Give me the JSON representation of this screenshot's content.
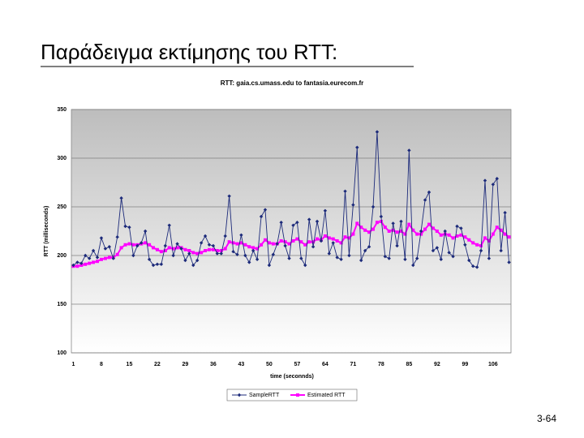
{
  "slide_title": "Παράδειγμα εκτίμησης του RTT:",
  "page_number": "3-64",
  "chart_data": {
    "type": "line",
    "title": "RTT: gaia.cs.umass.edu to fantasia.eurecom.fr",
    "x_label": "time (seconnds)",
    "y_label": "RTT (milliseconds)",
    "categories": [
      1,
      null,
      null,
      null,
      null,
      null,
      null,
      8,
      null,
      null,
      null,
      null,
      null,
      null,
      15,
      null,
      null,
      null,
      null,
      null,
      null,
      22,
      null,
      null,
      null,
      null,
      null,
      null,
      29,
      null,
      null,
      null,
      null,
      null,
      null,
      36,
      null,
      null,
      null,
      null,
      null,
      null,
      43,
      null,
      null,
      null,
      null,
      null,
      null,
      50,
      null,
      null,
      null,
      null,
      null,
      null,
      57,
      null,
      null,
      null,
      null,
      null,
      null,
      64,
      null,
      null,
      null,
      null,
      null,
      null,
      71,
      null,
      null,
      null,
      null,
      null,
      null,
      78,
      null,
      null,
      null,
      null,
      null,
      null,
      85,
      null,
      null,
      null,
      null,
      null,
      null,
      92,
      null,
      null,
      null,
      null,
      null,
      null,
      99,
      null,
      null,
      null,
      null,
      null,
      null,
      106,
      null,
      null,
      null,
      null
    ],
    "ylim": [
      100,
      350
    ],
    "yticks": [
      100,
      150,
      200,
      250,
      300,
      350
    ],
    "grid": true,
    "legend": "bottom",
    "series": [
      {
        "name": "SampleRTT",
        "color": "#1c2a7a",
        "marker": "diamond",
        "values": [
          190,
          193,
          192,
          200,
          197,
          205,
          198,
          218,
          207,
          209,
          197,
          219,
          259,
          230,
          229,
          200,
          210,
          213,
          225,
          196,
          190,
          191,
          191,
          210,
          231,
          200,
          212,
          207,
          195,
          202,
          190,
          195,
          213,
          220,
          211,
          210,
          202,
          202,
          220,
          261,
          204,
          201,
          221,
          200,
          193,
          205,
          196,
          240,
          247,
          190,
          201,
          212,
          234,
          210,
          197,
          231,
          234,
          197,
          190,
          237,
          209,
          235,
          215,
          246,
          202,
          213,
          198,
          196,
          266,
          200,
          252,
          311,
          195,
          205,
          209,
          250,
          327,
          240,
          199,
          197,
          233,
          210,
          235,
          196,
          308,
          190,
          197,
          225,
          257,
          265,
          205,
          208,
          196,
          225,
          203,
          199,
          230,
          228,
          211,
          195,
          189,
          188,
          205,
          277,
          197,
          273,
          279,
          205,
          244,
          193
        ]
      },
      {
        "name": "Estimated RTT",
        "color": "#ff00ff",
        "marker": "square",
        "values": [
          189,
          189,
          190,
          191,
          192,
          193,
          194,
          196,
          197,
          198,
          198,
          201,
          208,
          211,
          212,
          211,
          211,
          212,
          213,
          211,
          208,
          206,
          204,
          205,
          208,
          207,
          208,
          208,
          206,
          205,
          203,
          202,
          203,
          205,
          206,
          206,
          205,
          205,
          207,
          214,
          213,
          212,
          213,
          211,
          209,
          208,
          207,
          211,
          216,
          213,
          212,
          212,
          215,
          214,
          212,
          215,
          217,
          214,
          211,
          214,
          214,
          217,
          216,
          220,
          218,
          217,
          215,
          213,
          219,
          218,
          222,
          233,
          229,
          226,
          224,
          227,
          234,
          235,
          229,
          225,
          226,
          224,
          225,
          222,
          232,
          226,
          222,
          222,
          227,
          232,
          228,
          225,
          221,
          222,
          221,
          218,
          220,
          221,
          219,
          216,
          213,
          211,
          210,
          218,
          215,
          222,
          229,
          226,
          222,
          219
        ]
      }
    ]
  }
}
